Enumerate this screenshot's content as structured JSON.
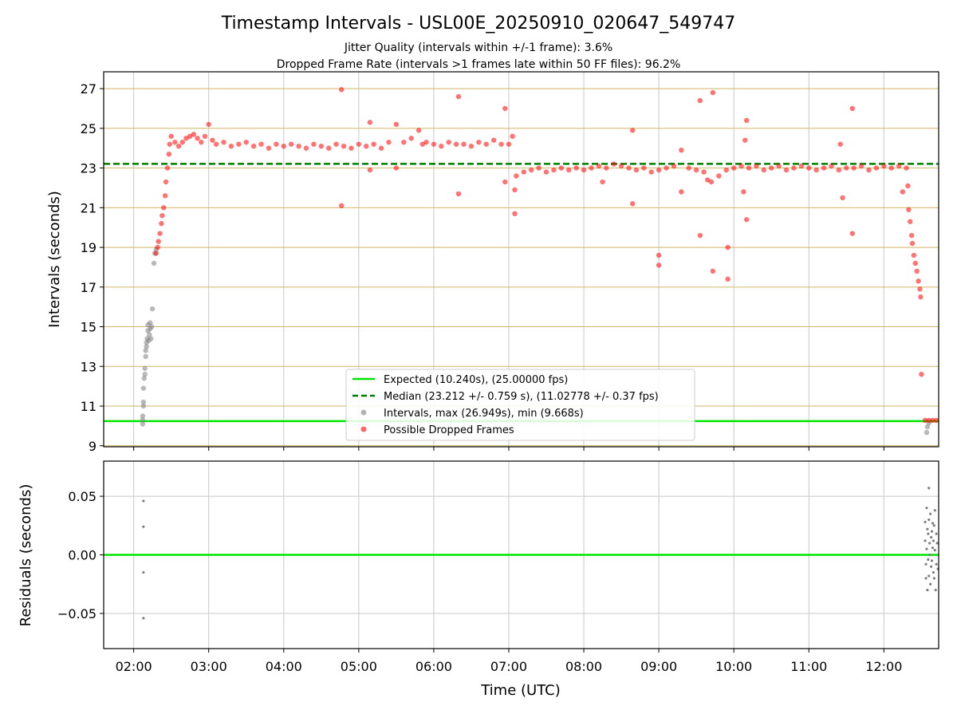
{
  "chart_data": [
    {
      "type": "scatter",
      "title": "Timestamp Intervals - USL00E_20250910_020647_549747",
      "subtitle_lines": [
        "Jitter Quality (intervals within +/-1 frame): 3.6%",
        "Dropped Frame Rate (intervals >1 frames late within 50 FF files): 96.2%"
      ],
      "ylabel": "Intervals (seconds)",
      "ylim": [
        8.95,
        27.85
      ],
      "yticks": [
        9,
        11,
        13,
        15,
        17,
        19,
        21,
        23,
        25,
        27
      ],
      "ytick_labels": [
        "9",
        "11",
        "13",
        "15",
        "17",
        "19",
        "21",
        "23",
        "25",
        "27"
      ],
      "grid": true,
      "legend_position": "lower-center",
      "lines": [
        {
          "name": "Expected (10.240s), (25.00000 fps)",
          "y": 10.24,
          "color": "#00e600",
          "style": "solid"
        },
        {
          "name": "Median (23.212 +/- 0.759 s), (11.02778 +/- 0.37 fps)",
          "y": 23.212,
          "color": "#008000",
          "style": "dashed"
        }
      ],
      "series": [
        {
          "name": "Intervals, max (26.949s), min (9.668s)",
          "color": "#808080",
          "points": [
            [
              2.12,
              10.1
            ],
            [
              2.12,
              10.3
            ],
            [
              2.12,
              10.5
            ],
            [
              2.13,
              11.0
            ],
            [
              2.13,
              11.2
            ],
            [
              2.13,
              11.9
            ],
            [
              2.14,
              12.4
            ],
            [
              2.15,
              12.6
            ],
            [
              2.15,
              12.9
            ],
            [
              2.16,
              13.5
            ],
            [
              2.16,
              13.8
            ],
            [
              2.17,
              14.0
            ],
            [
              2.17,
              14.2
            ],
            [
              2.18,
              14.4
            ],
            [
              2.19,
              14.8
            ],
            [
              2.19,
              15.1
            ],
            [
              2.2,
              14.3
            ],
            [
              2.21,
              14.6
            ],
            [
              2.22,
              15.2
            ],
            [
              2.22,
              14.9
            ],
            [
              2.23,
              14.4
            ],
            [
              2.24,
              15.0
            ],
            [
              2.25,
              15.9
            ],
            [
              2.27,
              18.2
            ],
            [
              2.28,
              18.7
            ],
            [
              2.3,
              18.9
            ],
            [
              12.57,
              9.67
            ],
            [
              12.58,
              9.95
            ],
            [
              12.6,
              10.15
            ]
          ]
        },
        {
          "name": "Possible Dropped Frames",
          "color": "#ff0000",
          "points": [
            [
              2.3,
              18.7
            ],
            [
              2.32,
              19.0
            ],
            [
              2.33,
              19.3
            ],
            [
              2.35,
              19.7
            ],
            [
              2.37,
              20.2
            ],
            [
              2.38,
              20.6
            ],
            [
              2.4,
              21.0
            ],
            [
              2.42,
              21.6
            ],
            [
              2.43,
              22.3
            ],
            [
              2.45,
              23.0
            ],
            [
              2.47,
              23.7
            ],
            [
              2.48,
              24.2
            ],
            [
              2.5,
              24.6
            ],
            [
              2.55,
              24.3
            ],
            [
              2.6,
              24.1
            ],
            [
              2.65,
              24.3
            ],
            [
              2.7,
              24.5
            ],
            [
              2.75,
              24.6
            ],
            [
              2.8,
              24.7
            ],
            [
              2.85,
              24.5
            ],
            [
              2.9,
              24.3
            ],
            [
              2.95,
              24.6
            ],
            [
              3.0,
              25.2
            ],
            [
              3.05,
              24.4
            ],
            [
              3.1,
              24.2
            ],
            [
              3.2,
              24.3
            ],
            [
              3.3,
              24.1
            ],
            [
              3.4,
              24.2
            ],
            [
              3.5,
              24.3
            ],
            [
              3.6,
              24.1
            ],
            [
              3.7,
              24.2
            ],
            [
              3.8,
              24.0
            ],
            [
              3.9,
              24.2
            ],
            [
              4.0,
              24.1
            ],
            [
              4.1,
              24.2
            ],
            [
              4.2,
              24.1
            ],
            [
              4.3,
              24.0
            ],
            [
              4.4,
              24.2
            ],
            [
              4.5,
              24.1
            ],
            [
              4.6,
              24.0
            ],
            [
              4.7,
              24.2
            ],
            [
              4.77,
              26.95
            ],
            [
              4.77,
              21.1
            ],
            [
              4.8,
              24.1
            ],
            [
              4.9,
              24.0
            ],
            [
              5.0,
              24.2
            ],
            [
              5.1,
              24.1
            ],
            [
              5.15,
              25.3
            ],
            [
              5.15,
              22.9
            ],
            [
              5.2,
              24.2
            ],
            [
              5.3,
              24.0
            ],
            [
              5.4,
              24.3
            ],
            [
              5.5,
              25.2
            ],
            [
              5.5,
              23.0
            ],
            [
              5.6,
              24.3
            ],
            [
              5.7,
              24.5
            ],
            [
              5.8,
              24.9
            ],
            [
              5.85,
              24.2
            ],
            [
              5.9,
              24.3
            ],
            [
              6.0,
              24.2
            ],
            [
              6.1,
              24.1
            ],
            [
              6.2,
              24.3
            ],
            [
              6.3,
              24.2
            ],
            [
              6.33,
              26.6
            ],
            [
              6.33,
              21.7
            ],
            [
              6.4,
              24.2
            ],
            [
              6.5,
              24.1
            ],
            [
              6.6,
              24.3
            ],
            [
              6.7,
              24.2
            ],
            [
              6.8,
              24.4
            ],
            [
              6.9,
              24.2
            ],
            [
              6.95,
              26.0
            ],
            [
              6.95,
              22.3
            ],
            [
              7.0,
              24.2
            ],
            [
              7.05,
              24.6
            ],
            [
              7.08,
              21.9
            ],
            [
              7.08,
              20.7
            ],
            [
              7.1,
              22.6
            ],
            [
              7.2,
              22.8
            ],
            [
              7.3,
              22.9
            ],
            [
              7.4,
              23.0
            ],
            [
              7.5,
              22.8
            ],
            [
              7.6,
              22.9
            ],
            [
              7.7,
              23.0
            ],
            [
              7.8,
              22.9
            ],
            [
              7.9,
              23.0
            ],
            [
              8.0,
              22.9
            ],
            [
              8.1,
              23.0
            ],
            [
              8.2,
              23.1
            ],
            [
              8.25,
              22.3
            ],
            [
              8.3,
              23.0
            ],
            [
              8.4,
              23.2
            ],
            [
              8.5,
              23.1
            ],
            [
              8.6,
              23.0
            ],
            [
              8.65,
              24.9
            ],
            [
              8.65,
              21.2
            ],
            [
              8.7,
              22.9
            ],
            [
              8.8,
              23.0
            ],
            [
              8.9,
              22.8
            ],
            [
              9.0,
              18.6
            ],
            [
              9.0,
              18.1
            ],
            [
              9.0,
              22.9
            ],
            [
              9.1,
              23.0
            ],
            [
              9.2,
              23.1
            ],
            [
              9.3,
              23.9
            ],
            [
              9.3,
              21.8
            ],
            [
              9.4,
              23.0
            ],
            [
              9.5,
              22.9
            ],
            [
              9.55,
              26.4
            ],
            [
              9.55,
              19.6
            ],
            [
              9.6,
              22.8
            ],
            [
              9.65,
              22.4
            ],
            [
              9.7,
              22.3
            ],
            [
              9.72,
              26.8
            ],
            [
              9.72,
              17.8
            ],
            [
              9.8,
              22.6
            ],
            [
              9.9,
              22.9
            ],
            [
              9.92,
              19.0
            ],
            [
              9.92,
              17.4
            ],
            [
              10.0,
              23.0
            ],
            [
              10.1,
              23.1
            ],
            [
              10.13,
              21.8
            ],
            [
              10.15,
              24.4
            ],
            [
              10.17,
              25.4
            ],
            [
              10.17,
              20.4
            ],
            [
              10.2,
              23.0
            ],
            [
              10.3,
              23.1
            ],
            [
              10.4,
              22.9
            ],
            [
              10.5,
              23.0
            ],
            [
              10.6,
              23.1
            ],
            [
              10.7,
              22.9
            ],
            [
              10.8,
              23.0
            ],
            [
              10.9,
              23.1
            ],
            [
              11.0,
              23.0
            ],
            [
              11.1,
              22.9
            ],
            [
              11.2,
              23.0
            ],
            [
              11.3,
              23.1
            ],
            [
              11.4,
              22.9
            ],
            [
              11.42,
              24.2
            ],
            [
              11.45,
              21.5
            ],
            [
              11.5,
              23.0
            ],
            [
              11.58,
              26.0
            ],
            [
              11.58,
              19.7
            ],
            [
              11.6,
              23.0
            ],
            [
              11.7,
              23.1
            ],
            [
              11.8,
              22.9
            ],
            [
              11.9,
              23.0
            ],
            [
              12.0,
              23.1
            ],
            [
              12.1,
              23.0
            ],
            [
              12.2,
              23.1
            ],
            [
              12.25,
              21.8
            ],
            [
              12.3,
              23.0
            ],
            [
              12.32,
              22.1
            ],
            [
              12.33,
              20.9
            ],
            [
              12.35,
              20.3
            ],
            [
              12.37,
              19.6
            ],
            [
              12.38,
              19.2
            ],
            [
              12.4,
              18.6
            ],
            [
              12.42,
              18.2
            ],
            [
              12.44,
              17.8
            ],
            [
              12.46,
              17.3
            ],
            [
              12.48,
              16.9
            ],
            [
              12.49,
              16.5
            ],
            [
              12.5,
              12.6
            ],
            [
              12.55,
              10.28
            ],
            [
              12.6,
              10.28
            ],
            [
              12.65,
              10.28
            ],
            [
              12.7,
              10.28
            ]
          ]
        }
      ]
    },
    {
      "type": "scatter",
      "ylabel": "Residuals (seconds)",
      "xlabel": "Time (UTC)",
      "ylim": [
        -0.08,
        0.08
      ],
      "yticks": [
        -0.05,
        0.0,
        0.05
      ],
      "ytick_labels": [
        "−0.05",
        "0.00",
        "0.05"
      ],
      "xlim": [
        1.6,
        12.73
      ],
      "xticks": [
        2,
        3,
        4,
        5,
        6,
        7,
        8,
        9,
        10,
        11,
        12
      ],
      "xtick_labels": [
        "02:00",
        "03:00",
        "04:00",
        "05:00",
        "06:00",
        "07:00",
        "08:00",
        "09:00",
        "10:00",
        "11:00",
        "12:00"
      ],
      "grid": true,
      "lines": [
        {
          "y": 0.0,
          "color": "#00e600",
          "style": "solid"
        }
      ],
      "series": [
        {
          "color": "#808080",
          "points": [
            [
              2.13,
              0.046
            ],
            [
              2.13,
              0.024
            ],
            [
              2.13,
              -0.015
            ],
            [
              2.13,
              -0.054
            ],
            [
              12.55,
              0.028
            ],
            [
              12.55,
              0.012
            ],
            [
              12.56,
              -0.008
            ],
            [
              12.56,
              -0.02
            ],
            [
              12.57,
              0.04
            ],
            [
              12.57,
              0.005
            ],
            [
              12.58,
              -0.03
            ],
            [
              12.58,
              0.022
            ],
            [
              12.59,
              -0.004
            ],
            [
              12.59,
              0.018
            ],
            [
              12.6,
              0.057
            ],
            [
              12.6,
              0.03
            ],
            [
              12.6,
              -0.018
            ],
            [
              12.61,
              0.0
            ],
            [
              12.61,
              0.01
            ],
            [
              12.62,
              -0.025
            ],
            [
              12.62,
              0.035
            ],
            [
              12.63,
              0.015
            ],
            [
              12.63,
              -0.01
            ],
            [
              12.64,
              0.02
            ],
            [
              12.64,
              -0.005
            ],
            [
              12.65,
              0.006
            ],
            [
              12.65,
              0.027
            ],
            [
              12.66,
              -0.015
            ],
            [
              12.66,
              0.012
            ],
            [
              12.67,
              0.025
            ],
            [
              12.67,
              -0.02
            ],
            [
              12.68,
              0.038
            ],
            [
              12.68,
              0.004
            ],
            [
              12.69,
              -0.03
            ],
            [
              12.7,
              0.018
            ],
            [
              12.7,
              -0.008
            ],
            [
              12.71,
              0.01
            ],
            [
              12.72,
              -0.012
            ]
          ]
        }
      ]
    }
  ]
}
